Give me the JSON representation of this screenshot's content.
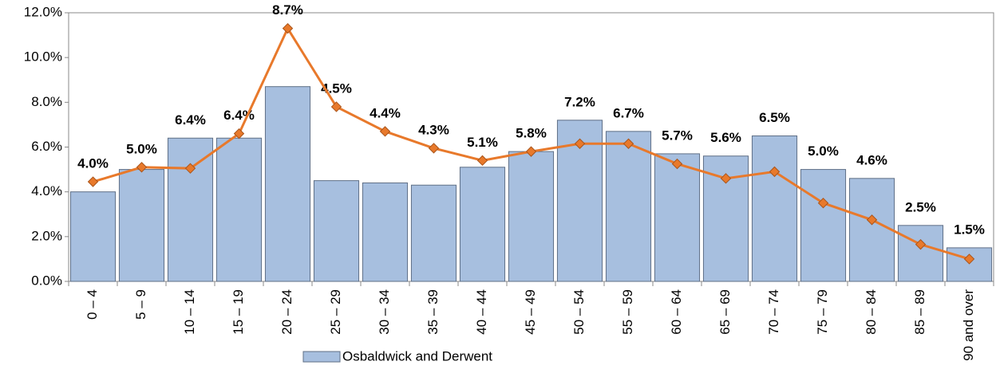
{
  "chart_data": {
    "type": "bar",
    "categories": [
      "0 – 4",
      "5 – 9",
      "10 – 14",
      "15 – 19",
      "20 – 24",
      "25 – 29",
      "30 – 34",
      "35 – 39",
      "40 – 44",
      "45 – 49",
      "50 – 54",
      "55 – 59",
      "60 – 64",
      "65 – 69",
      "70 – 74",
      "75 – 79",
      "80 – 84",
      "85 – 89",
      "90 and over"
    ],
    "series": [
      {
        "name": "Osbaldwick and Derwent",
        "type": "bar",
        "color": "#a7bfdf",
        "values": [
          4.0,
          5.0,
          6.4,
          6.4,
          8.7,
          4.5,
          4.4,
          4.3,
          5.1,
          5.8,
          7.2,
          6.7,
          5.7,
          5.6,
          6.5,
          5.0,
          4.6,
          2.5,
          1.5
        ],
        "value_labels": [
          "4.0%",
          "5.0%",
          "6.4%",
          "6.4%",
          "8.7%",
          "4.5%",
          "4.4%",
          "4.3%",
          "5.1%",
          "5.8%",
          "7.2%",
          "6.7%",
          "5.7%",
          "5.6%",
          "6.5%",
          "5.0%",
          "4.6%",
          "2.5%",
          "1.5%"
        ]
      },
      {
        "type": "line",
        "color": "#e8792b",
        "values": [
          4.45,
          5.1,
          5.05,
          6.6,
          11.3,
          7.8,
          6.7,
          5.95,
          5.4,
          5.8,
          6.15,
          6.15,
          5.25,
          4.6,
          4.9,
          3.5,
          2.75,
          1.65,
          1.0
        ]
      }
    ],
    "ylim": [
      0,
      12
    ],
    "yticks": [
      {
        "value": 0,
        "label": "0.0%"
      },
      {
        "value": 2,
        "label": "2.0%"
      },
      {
        "value": 4,
        "label": "4.0%"
      },
      {
        "value": 6,
        "label": "6.0%"
      },
      {
        "value": 8,
        "label": "8.0%"
      },
      {
        "value": 10,
        "label": "10.0%"
      },
      {
        "value": 12,
        "label": "12.0%"
      }
    ],
    "grid": false
  }
}
